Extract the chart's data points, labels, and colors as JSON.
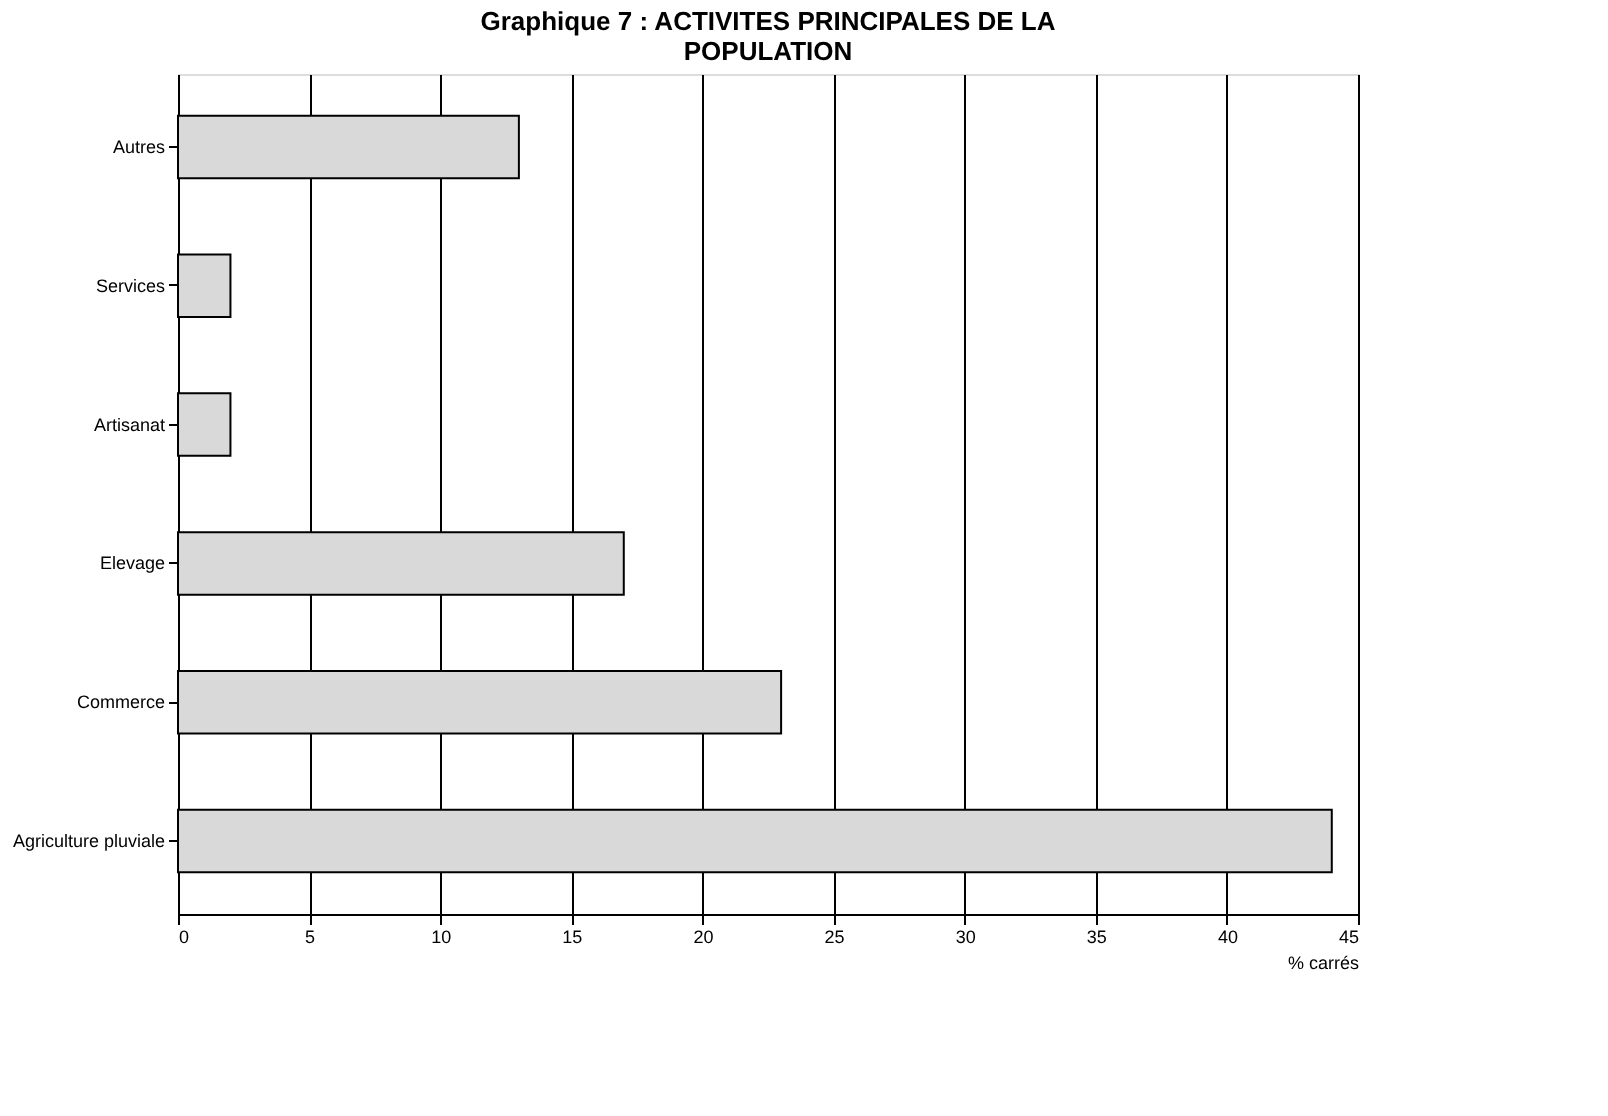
{
  "chart_data": {
    "type": "bar",
    "orientation": "horizontal",
    "title": [
      "Graphique 7 : ACTIVITES PRINCIPALES DE LA",
      "POPULATION"
    ],
    "categories": [
      "Autres",
      "Services",
      "Artisanat",
      "Elevage",
      "Commerce",
      "Agriculture pluviale"
    ],
    "values": [
      13,
      2,
      2,
      17,
      23,
      44
    ],
    "color": "#d9d9d9",
    "xlabel": "% carrés",
    "xlim": [
      0,
      45
    ],
    "xticks": [
      0,
      5,
      10,
      15,
      20,
      25,
      30,
      35,
      40,
      45
    ],
    "grid": "x"
  }
}
